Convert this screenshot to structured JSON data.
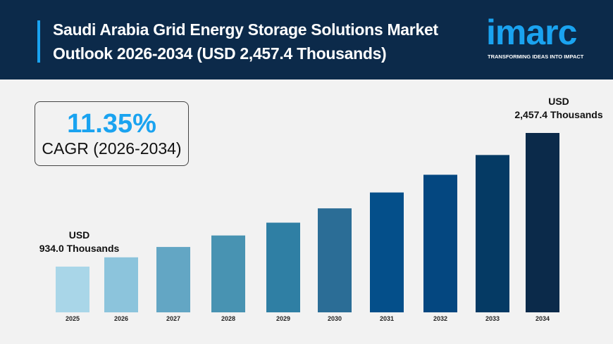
{
  "header": {
    "title": "Saudi Arabia Grid Energy Storage Solutions Market\nOutlook 2026-2034 (USD 2,457.4 Thousands)",
    "logo_word": "imarc",
    "logo_tagline": "TRANSFORMING IDEAS INTO IMPACT"
  },
  "cagr": {
    "value": "11.35%",
    "label": "CAGR (2026-2034)"
  },
  "colors": {
    "header_bg": "#0c2a4a",
    "accent": "#1aa3f0",
    "bar_start": "#a9d6e8",
    "bar_end": "#0b2a4a"
  },
  "chart_data": {
    "type": "bar",
    "title": "Saudi Arabia Grid Energy Storage Solutions Market Outlook 2026-2034 (USD 2,457.4 Thousands)",
    "categories": [
      "2025",
      "2026",
      "2027",
      "2028",
      "2029",
      "2030",
      "2031",
      "2032",
      "2033",
      "2034"
    ],
    "values": [
      934.0,
      1040,
      1158,
      1289,
      1435,
      1598,
      1779,
      1981,
      2206,
      2457.4
    ],
    "unit": "USD Thousands",
    "annotations": [
      {
        "category": "2025",
        "line1": "USD",
        "line2": "934.0 Thousands"
      },
      {
        "category": "2034",
        "line1": "USD",
        "line2": "2,457.4 Thousands"
      }
    ],
    "grid": false,
    "legend": "none",
    "colors": [
      "#a9d6e8",
      "#8cc4dc",
      "#63a6c4",
      "#4893b2",
      "#2f7fa4",
      "#2b6d96",
      "#044f8a",
      "#044780",
      "#053a64",
      "#0b2a4a"
    ]
  }
}
